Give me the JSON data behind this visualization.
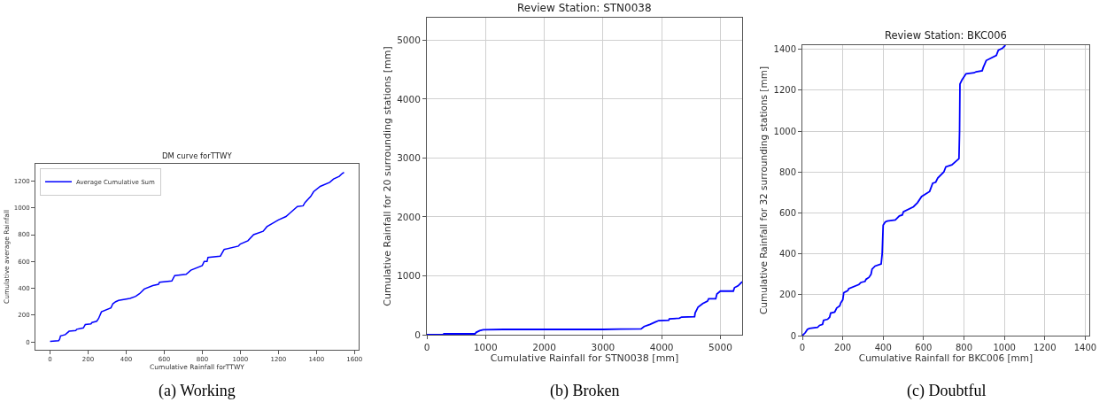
{
  "chart_data": [
    {
      "type": "line",
      "title": "DM curve forTTWY",
      "xlabel": "Cumulative Rainfall forTTWY",
      "ylabel": "Cumulative average Rainfall",
      "legend": "top left",
      "grid": false,
      "annotations": [
        "(a) Working"
      ],
      "xlim": [
        -77,
        1622
      ],
      "ylim": [
        -58,
        1328
      ],
      "xticks": [
        0,
        200,
        400,
        600,
        800,
        1000,
        1200,
        1400,
        1600
      ],
      "yticks": [
        0,
        200,
        400,
        600,
        800,
        1000,
        1200
      ],
      "series": [
        {
          "name": "Average Cumulative Sum",
          "color": "#0000ff",
          "x": [
            0,
            45,
            50,
            55,
            80,
            100,
            135,
            140,
            175,
            185,
            215,
            220,
            245,
            255,
            270,
            320,
            330,
            345,
            360,
            420,
            450,
            470,
            495,
            540,
            570,
            575,
            640,
            655,
            715,
            740,
            800,
            810,
            825,
            830,
            895,
            915,
            990,
            1000,
            1040,
            1070,
            1120,
            1140,
            1170,
            1200,
            1240,
            1260,
            1300,
            1330,
            1340,
            1370,
            1385,
            1420,
            1470,
            1490,
            1520,
            1535,
            1545
          ],
          "values": [
            5,
            10,
            20,
            45,
            55,
            80,
            85,
            95,
            105,
            130,
            135,
            145,
            155,
            175,
            225,
            255,
            285,
            300,
            310,
            325,
            340,
            360,
            395,
            420,
            430,
            445,
            455,
            495,
            505,
            535,
            570,
            600,
            600,
            630,
            640,
            690,
            715,
            730,
            755,
            800,
            825,
            860,
            885,
            910,
            935,
            960,
            1010,
            1015,
            1040,
            1085,
            1120,
            1160,
            1190,
            1215,
            1235,
            1255,
            1265
          ]
        }
      ]
    },
    {
      "type": "line",
      "title": "Review Station: STN0038",
      "xlabel": "Cumulative Rainfall for STN0038 [mm]",
      "ylabel": "Cumulative Rainfall for 20 surrounding stations [mm]",
      "grid": true,
      "annotations": [
        "(b) Broken"
      ],
      "xlim": [
        0,
        5370
      ],
      "ylim": [
        0,
        5380
      ],
      "xticks": [
        0,
        1000,
        2000,
        3000,
        4000,
        5000
      ],
      "yticks": [
        0,
        1000,
        2000,
        3000,
        4000,
        5000
      ],
      "series": [
        {
          "color": "#0000ff",
          "x": [
            0,
            280,
            290,
            820,
            840,
            900,
            960,
            1300,
            2000,
            3000,
            3300,
            3650,
            3700,
            3800,
            3900,
            3950,
            4120,
            4130,
            4300,
            4340,
            4560,
            4570,
            4620,
            4700,
            4780,
            4800,
            4920,
            4940,
            5000,
            5220,
            5240,
            5300,
            5330,
            5370
          ],
          "values": [
            0,
            5,
            15,
            15,
            40,
            70,
            85,
            90,
            90,
            90,
            95,
            100,
            140,
            175,
            220,
            240,
            245,
            270,
            280,
            300,
            305,
            370,
            470,
            530,
            570,
            610,
            610,
            690,
            740,
            740,
            800,
            830,
            860,
            900
          ]
        }
      ]
    },
    {
      "type": "line",
      "title": "Review Station: BKC006",
      "xlabel": "Cumulative Rainfall for BKC006 [mm]",
      "ylabel": "Cumulative Rainfall for 32 surrounding stations [mm]",
      "grid": true,
      "annotations": [
        "(c) Doubtful"
      ],
      "xlim": [
        0,
        1420
      ],
      "ylim": [
        0,
        1420
      ],
      "xticks": [
        0,
        200,
        400,
        600,
        800,
        1000,
        1200,
        1400
      ],
      "yticks": [
        0,
        200,
        400,
        600,
        800,
        1000,
        1200,
        1400
      ],
      "series": [
        {
          "color": "#0000ff",
          "x": [
            0,
            15,
            25,
            35,
            75,
            85,
            100,
            105,
            125,
            135,
            140,
            160,
            170,
            185,
            190,
            200,
            205,
            215,
            225,
            230,
            280,
            290,
            310,
            315,
            330,
            340,
            345,
            360,
            390,
            395,
            400,
            410,
            420,
            460,
            470,
            480,
            495,
            500,
            550,
            570,
            590,
            630,
            645,
            660,
            670,
            700,
            710,
            740,
            775,
            778,
            780,
            790,
            810,
            850,
            860,
            890,
            895,
            910,
            960,
            970,
            990,
            1005
          ],
          "values": [
            0,
            15,
            30,
            35,
            40,
            50,
            55,
            75,
            80,
            90,
            110,
            115,
            135,
            145,
            160,
            175,
            210,
            215,
            220,
            230,
            250,
            260,
            265,
            275,
            285,
            300,
            325,
            340,
            350,
            400,
            540,
            555,
            560,
            565,
            575,
            585,
            590,
            605,
            630,
            650,
            680,
            705,
            745,
            750,
            770,
            800,
            825,
            835,
            865,
            1000,
            1230,
            1250,
            1280,
            1285,
            1290,
            1295,
            1310,
            1345,
            1370,
            1395,
            1405,
            1420
          ]
        }
      ]
    }
  ]
}
